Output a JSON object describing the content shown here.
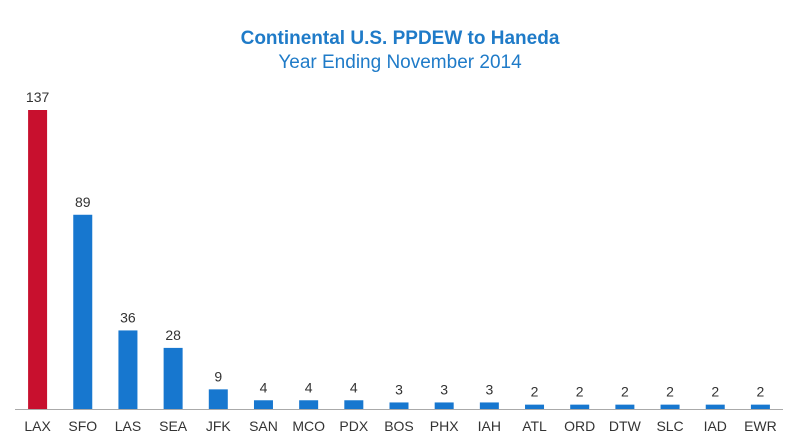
{
  "chart_data": {
    "type": "bar",
    "title": "Continental U.S.  PPDEW to Haneda",
    "subtitle": "Year Ending November 2014",
    "xlabel": "",
    "ylabel": "",
    "categories": [
      "LAX",
      "SFO",
      "LAS",
      "SEA",
      "JFK",
      "SAN",
      "MCO",
      "PDX",
      "BOS",
      "PHX",
      "IAH",
      "ATL",
      "ORD",
      "DTW",
      "SLC",
      "IAD",
      "EWR"
    ],
    "values": [
      137,
      89,
      36,
      28,
      9,
      4,
      4,
      4,
      3,
      3,
      3,
      2,
      2,
      2,
      2,
      2,
      2
    ],
    "data_labels": [
      "137",
      "89",
      "36",
      "28",
      "9",
      "4",
      "4",
      "4",
      "3",
      "3",
      "3",
      "2",
      "2",
      "2",
      "2",
      "2",
      "2"
    ],
    "ylim": [
      0,
      137
    ],
    "grid": false,
    "legend": "none",
    "colors": {
      "highlight": "#c8102e",
      "default": "#1777cf",
      "title": "#1f7bc8",
      "axis": "#aaaaaa"
    },
    "highlight_index": 0
  }
}
